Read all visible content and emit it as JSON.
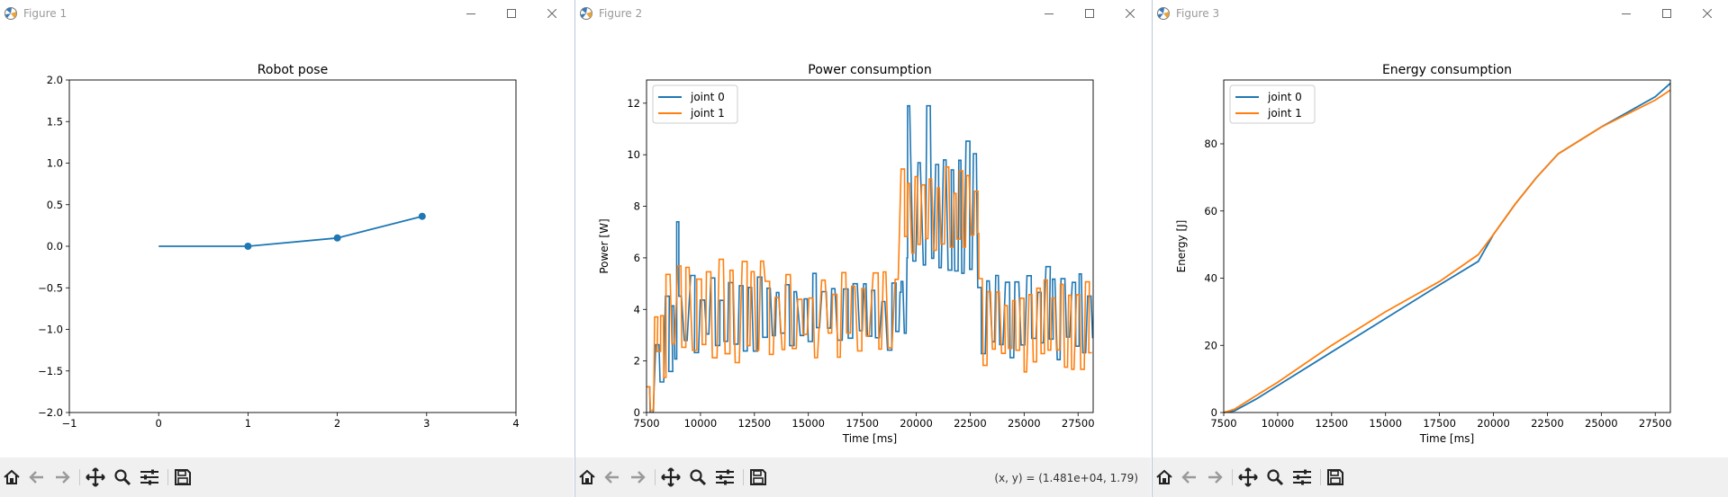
{
  "windows": [
    {
      "title": "Figure 1"
    },
    {
      "title": "Figure 2"
    },
    {
      "title": "Figure 3"
    }
  ],
  "toolbar": {
    "coords_readout": "(x, y) = (1.481e+04, 1.79)"
  },
  "colors": {
    "joint0": "#1f77b4",
    "joint1": "#ff7f0e"
  },
  "icons": [
    "home-icon",
    "back-arrow-icon",
    "forward-arrow-icon",
    "pan-icon",
    "zoom-icon",
    "configure-subplots-icon",
    "save-icon"
  ],
  "chart_data": [
    {
      "type": "line",
      "title": "Robot pose",
      "xlabel": "",
      "ylabel": "",
      "xlim": [
        -1,
        4
      ],
      "ylim": [
        -2.0,
        2.0
      ],
      "xticks": [
        "−1",
        "0",
        "1",
        "2",
        "3",
        "4"
      ],
      "yticks": [
        "−2.0",
        "−1.5",
        "−1.0",
        "−0.5",
        "0.0",
        "0.5",
        "1.0",
        "1.5",
        "2.0"
      ],
      "series": [
        {
          "x": [
            0,
            1,
            2,
            2.95
          ],
          "y": [
            0.0,
            0.0,
            0.1,
            0.36
          ],
          "markers_at": [
            1,
            2,
            3
          ]
        }
      ]
    },
    {
      "type": "line",
      "title": "Power consumption",
      "xlabel": "Time [ms]",
      "ylabel": "Power [W]",
      "xlim": [
        7500,
        28200
      ],
      "ylim": [
        0,
        12.9
      ],
      "xticks": [
        "7500",
        "10000",
        "12500",
        "15000",
        "17500",
        "20000",
        "22500",
        "25000",
        "27500"
      ],
      "yticks": [
        "0",
        "2",
        "4",
        "6",
        "8",
        "10",
        "12"
      ],
      "legend": {
        "position": "upper-left"
      },
      "series": [
        {
          "name": "joint 0",
          "segments": [
            {
              "start": 7500,
              "end": 8900,
              "ramp": [
                0.0,
                3.2
              ],
              "low": 1.4,
              "high": 4.6,
              "period": 260
            },
            {
              "start": 8900,
              "end": 9000,
              "ramp": [
                7.4,
                7.4
              ]
            },
            {
              "start": 9000,
              "end": 19300,
              "low": 2.3,
              "high": 5.4,
              "period": 310
            },
            {
              "start": 19300,
              "end": 19600,
              "low": 3.0,
              "high": 6.2,
              "period": 150
            },
            {
              "start": 19600,
              "end": 22850,
              "low": 5.4,
              "high": 10.6,
              "period": 260,
              "spikes": [
                {
                  "x": 19800,
                  "y": 11.9
                },
                {
                  "x": 20600,
                  "y": 11.9
                },
                {
                  "x": 21400,
                  "y": 9.8
                }
              ]
            },
            {
              "start": 22850,
              "end": 28200,
              "low": 2.0,
              "high": 5.7,
              "period": 290
            }
          ]
        },
        {
          "name": "joint 1",
          "segments": [
            {
              "start": 7500,
              "end": 8400,
              "ramp": [
                0.0,
                3.9
              ],
              "low": 1.2,
              "high": 4.0,
              "period": 230
            },
            {
              "start": 8400,
              "end": 13000,
              "low": 1.9,
              "high": 6.2,
              "period": 330
            },
            {
              "start": 13000,
              "end": 19300,
              "low": 2.1,
              "high": 5.5,
              "period": 330
            },
            {
              "start": 19300,
              "end": 22900,
              "low": 6.1,
              "high": 9.6,
              "period": 230
            },
            {
              "start": 22900,
              "end": 28200,
              "low": 1.5,
              "high": 5.3,
              "period": 260
            }
          ]
        }
      ]
    },
    {
      "type": "line",
      "title": "Energy consumption",
      "xlabel": "Time [ms]",
      "ylabel": "Energy [J]",
      "xlim": [
        7500,
        28200
      ],
      "ylim": [
        0,
        99
      ],
      "xticks": [
        "7500",
        "10000",
        "12500",
        "15000",
        "17500",
        "20000",
        "22500",
        "25000",
        "27500"
      ],
      "yticks": [
        "0",
        "20",
        "40",
        "60",
        "80"
      ],
      "legend": {
        "position": "upper-left"
      },
      "series": [
        {
          "name": "joint 0",
          "x": [
            7500,
            8000,
            9000,
            10000,
            12500,
            15000,
            17500,
            19300,
            20000,
            21000,
            22000,
            23000,
            25000,
            27500,
            28200
          ],
          "y": [
            0,
            0.5,
            4,
            8,
            18,
            28,
            38,
            45,
            53,
            62,
            70,
            77,
            85,
            94,
            98
          ]
        },
        {
          "name": "joint 1",
          "x": [
            7500,
            8000,
            9000,
            10000,
            12500,
            15000,
            17500,
            19300,
            20000,
            21000,
            22000,
            23000,
            25000,
            27500,
            28200
          ],
          "y": [
            0,
            1,
            5,
            9,
            20,
            30,
            39,
            47,
            53,
            62,
            70,
            77,
            85,
            93,
            96
          ]
        }
      ]
    }
  ]
}
